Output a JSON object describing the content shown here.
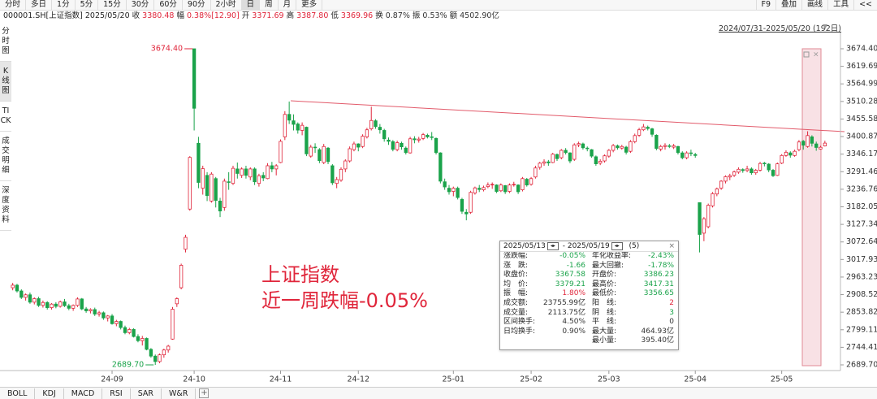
{
  "toolbar": {
    "tabs": [
      "分时",
      "多日",
      "1分",
      "5分",
      "15分",
      "30分",
      "60分",
      "90分",
      "2小时",
      "日",
      "周",
      "月",
      "更多"
    ],
    "active": "日",
    "tools": [
      "F9",
      "叠加",
      "画线",
      "工具",
      "<<"
    ]
  },
  "quote": {
    "symbol": "000001.SH[上证指数]",
    "date": "2025/05/20",
    "items": [
      {
        "label": "收",
        "value": "3380.48",
        "color": "#e0263b"
      },
      {
        "label": "幅",
        "value": "0.38%[12.90]",
        "color": "#e0263b"
      },
      {
        "label": "开",
        "value": "3371.69",
        "color": "#e0263b"
      },
      {
        "label": "高",
        "value": "3387.80",
        "color": "#e0263b"
      },
      {
        "label": "低",
        "value": "3369.96",
        "color": "#e0263b"
      },
      {
        "label": "换",
        "value": "0.87%",
        "color": "#333333"
      },
      {
        "label": "振",
        "value": "0.53%",
        "color": "#333333"
      },
      {
        "label": "额",
        "value": "4502.90亿",
        "color": "#333333"
      }
    ]
  },
  "sidebar": [
    "分时图",
    "K线图",
    "TICK",
    "成交明细",
    "深度资料"
  ],
  "sidebar_active": "K线图",
  "range": "2024/07/31-2025/05/20 (192日)",
  "headline": [
    "上证指数",
    "近一周跌幅-0.05%"
  ],
  "stats_box": {
    "start": "2025/05/13",
    "end": "2025/05/19",
    "count": "(5)",
    "left": [
      {
        "label": "涨跌幅:",
        "value": "-0.05%",
        "color": "#1aa34a"
      },
      {
        "label": "涨　跌:",
        "value": "-1.66",
        "color": "#1aa34a"
      },
      {
        "label": "收盘价:",
        "value": "3367.58",
        "color": "#1aa34a"
      },
      {
        "label": "均　价:",
        "value": "3379.21",
        "color": "#1aa34a"
      },
      {
        "label": "振　幅:",
        "value": "1.80%",
        "color": "#e0263b"
      },
      {
        "label": "成交额:",
        "value": "23755.99亿",
        "color": "#333333"
      },
      {
        "label": "成交量:",
        "value": "2113.75亿",
        "color": "#333333"
      },
      {
        "label": "区间换手:",
        "value": "4.50%",
        "color": "#333333"
      },
      {
        "label": "日均换手:",
        "value": "0.90%",
        "color": "#333333"
      }
    ],
    "right": [
      {
        "label": "年化收益率:",
        "value": "-2.43%",
        "color": "#1aa34a"
      },
      {
        "label": "最大回撤:",
        "value": "-1.78%",
        "color": "#1aa34a"
      },
      {
        "label": "开盘价:",
        "value": "3386.23",
        "color": "#1aa34a"
      },
      {
        "label": "最高价:",
        "value": "3417.31",
        "color": "#1aa34a"
      },
      {
        "label": "最低价:",
        "value": "3356.65",
        "color": "#1aa34a"
      },
      {
        "label": "阳　线:",
        "value": "2",
        "color": "#e0263b"
      },
      {
        "label": "阴　线:",
        "value": "3",
        "color": "#1aa34a"
      },
      {
        "label": "平　线:",
        "value": "0",
        "color": "#333333"
      },
      {
        "label": "最大量:",
        "value": "464.93亿",
        "color": "#333333"
      },
      {
        "label": "最小量:",
        "value": "395.40亿",
        "color": "#333333"
      }
    ]
  },
  "indicator_tabs": [
    "BOLL",
    "KDJ",
    "MACD",
    "RSI",
    "SAR",
    "W&R"
  ],
  "chart_data": {
    "type": "candlestick",
    "up_color": "#e0263b",
    "down_color": "#1aa34a",
    "xlim": [
      0,
      189
    ],
    "xticks": [
      {
        "value": 23,
        "label": "24-09"
      },
      {
        "value": 42,
        "label": "24-10"
      },
      {
        "value": 62,
        "label": "24-11"
      },
      {
        "value": 80,
        "label": "24-12"
      },
      {
        "value": 102,
        "label": "25-01"
      },
      {
        "value": 120,
        "label": "25-02"
      },
      {
        "value": 138,
        "label": "25-03"
      },
      {
        "value": 158,
        "label": "25-04"
      },
      {
        "value": 178,
        "label": "25-05"
      }
    ],
    "ylim": [
      2689.7,
      3674.4
    ],
    "yticks": [
      {
        "value": 3674.4,
        "label": "3674.40"
      },
      3619.69,
      3564.99,
      3510.28,
      3455.58,
      3400.87,
      3346.17,
      3291.46,
      3236.76,
      3182.05,
      3127.34,
      3072.64,
      3017.93,
      2963.23,
      2908.52,
      2853.82,
      2799.11,
      2744.41,
      {
        "value": 2689.7,
        "label": "2689.70"
      }
    ],
    "annotations": [
      {
        "value": 3674.4,
        "label": "3674.40"
      },
      {
        "value": 2689.7,
        "label": "2689.70"
      }
    ],
    "candles": [
      [
        2930,
        2945,
        2922,
        2938
      ],
      [
        2938,
        2942,
        2915,
        2920
      ],
      [
        2920,
        2925,
        2895,
        2900
      ],
      [
        2900,
        2912,
        2890,
        2908
      ],
      [
        2908,
        2915,
        2880,
        2885
      ],
      [
        2885,
        2900,
        2878,
        2896
      ],
      [
        2896,
        2902,
        2870,
        2875
      ],
      [
        2875,
        2890,
        2868,
        2884
      ],
      [
        2884,
        2888,
        2862,
        2868
      ],
      [
        2868,
        2882,
        2862,
        2879
      ],
      [
        2879,
        2885,
        2866,
        2872
      ],
      [
        2872,
        2890,
        2868,
        2886
      ],
      [
        2886,
        2895,
        2870,
        2874
      ],
      [
        2874,
        2880,
        2860,
        2866
      ],
      [
        2866,
        2878,
        2858,
        2875
      ],
      [
        2875,
        2900,
        2870,
        2895
      ],
      [
        2895,
        2898,
        2860,
        2864
      ],
      [
        2864,
        2870,
        2852,
        2858
      ],
      [
        2858,
        2866,
        2850,
        2862
      ],
      [
        2862,
        2868,
        2842,
        2848
      ],
      [
        2848,
        2858,
        2840,
        2852
      ],
      [
        2852,
        2856,
        2830,
        2836
      ],
      [
        2836,
        2845,
        2825,
        2842
      ],
      [
        2842,
        2848,
        2815,
        2818
      ],
      [
        2818,
        2830,
        2810,
        2825
      ],
      [
        2825,
        2828,
        2800,
        2806
      ],
      [
        2806,
        2812,
        2785,
        2790
      ],
      [
        2790,
        2805,
        2785,
        2800
      ],
      [
        2800,
        2804,
        2775,
        2778
      ],
      [
        2778,
        2785,
        2760,
        2765
      ],
      [
        2765,
        2780,
        2750,
        2772
      ],
      [
        2772,
        2775,
        2735,
        2738
      ],
      [
        2738,
        2742,
        2712,
        2717
      ],
      [
        2717,
        2722,
        2689.7,
        2700
      ],
      [
        2700,
        2725,
        2695,
        2721
      ],
      [
        2721,
        2740,
        2712,
        2736
      ],
      [
        2736,
        2752,
        2728,
        2748
      ],
      [
        2770,
        2870,
        2768,
        2863
      ],
      [
        2880,
        2900,
        2870,
        2896
      ],
      [
        2930,
        3005,
        2925,
        3000
      ],
      [
        3050,
        3095,
        3040,
        3087
      ],
      [
        3175,
        3340,
        3170,
        3336
      ],
      [
        3674.4,
        3674.4,
        3420,
        3489
      ],
      [
        3380,
        3400,
        3240,
        3258
      ],
      [
        3240,
        3310,
        3220,
        3301
      ],
      [
        3280,
        3290,
        3200,
        3217
      ],
      [
        3200,
        3290,
        3195,
        3284
      ],
      [
        3270,
        3275,
        3180,
        3202
      ],
      [
        3200,
        3210,
        3150,
        3169
      ],
      [
        3180,
        3270,
        3170,
        3262
      ],
      [
        3260,
        3290,
        3235,
        3258
      ],
      [
        3255,
        3310,
        3250,
        3302
      ],
      [
        3300,
        3320,
        3270,
        3286
      ],
      [
        3280,
        3305,
        3272,
        3300
      ],
      [
        3300,
        3310,
        3270,
        3280
      ],
      [
        3275,
        3305,
        3265,
        3300
      ],
      [
        3300,
        3305,
        3250,
        3260
      ],
      [
        3255,
        3285,
        3245,
        3279
      ],
      [
        3280,
        3290,
        3262,
        3272
      ],
      [
        3270,
        3318,
        3268,
        3310
      ],
      [
        3310,
        3322,
        3290,
        3300
      ],
      [
        3300,
        3315,
        3280,
        3310
      ],
      [
        3320,
        3392,
        3318,
        3386
      ],
      [
        3400,
        3480,
        3390,
        3470
      ],
      [
        3470,
        3510,
        3440,
        3452
      ],
      [
        3450,
        3470,
        3420,
        3439
      ],
      [
        3440,
        3445,
        3410,
        3421
      ],
      [
        3420,
        3445,
        3405,
        3436
      ],
      [
        3430,
        3432,
        3340,
        3347
      ],
      [
        3340,
        3375,
        3335,
        3368
      ],
      [
        3368,
        3380,
        3350,
        3367
      ],
      [
        3360,
        3365,
        3318,
        3326
      ],
      [
        3320,
        3378,
        3315,
        3370
      ],
      [
        3365,
        3368,
        3315,
        3323
      ],
      [
        3310,
        3315,
        3250,
        3257
      ],
      [
        3255,
        3275,
        3240,
        3267
      ],
      [
        3265,
        3305,
        3260,
        3299
      ],
      [
        3300,
        3330,
        3290,
        3325
      ],
      [
        3325,
        3370,
        3320,
        3363
      ],
      [
        3360,
        3385,
        3355,
        3378
      ],
      [
        3378,
        3380,
        3355,
        3368
      ],
      [
        3370,
        3408,
        3365,
        3402
      ],
      [
        3400,
        3428,
        3395,
        3422
      ],
      [
        3425,
        3494,
        3420,
        3451
      ],
      [
        3450,
        3455,
        3425,
        3432
      ],
      [
        3430,
        3440,
        3410,
        3422
      ],
      [
        3420,
        3425,
        3385,
        3394
      ],
      [
        3390,
        3398,
        3375,
        3386
      ],
      [
        3385,
        3390,
        3355,
        3361
      ],
      [
        3360,
        3388,
        3355,
        3382
      ],
      [
        3380,
        3385,
        3360,
        3369
      ],
      [
        3365,
        3370,
        3345,
        3351
      ],
      [
        3350,
        3400,
        3348,
        3394
      ],
      [
        3394,
        3402,
        3380,
        3391
      ],
      [
        3390,
        3400,
        3382,
        3393
      ],
      [
        3395,
        3412,
        3390,
        3407
      ],
      [
        3405,
        3410,
        3395,
        3400
      ],
      [
        3400,
        3415,
        3390,
        3398
      ],
      [
        3395,
        3398,
        3345,
        3351
      ],
      [
        3350,
        3352,
        3255,
        3262
      ],
      [
        3260,
        3270,
        3235,
        3244
      ],
      [
        3240,
        3250,
        3220,
        3229
      ],
      [
        3230,
        3245,
        3215,
        3240
      ],
      [
        3240,
        3245,
        3205,
        3211
      ],
      [
        3205,
        3210,
        3160,
        3168
      ],
      [
        3165,
        3175,
        3140,
        3160
      ],
      [
        3165,
        3232,
        3160,
        3227
      ],
      [
        3225,
        3245,
        3220,
        3241
      ],
      [
        3240,
        3250,
        3228,
        3236
      ],
      [
        3235,
        3248,
        3230,
        3242
      ],
      [
        3245,
        3258,
        3240,
        3250
      ],
      [
        3250,
        3258,
        3238,
        3252
      ],
      [
        3250,
        3252,
        3225,
        3230
      ],
      [
        3232,
        3255,
        3228,
        3250
      ],
      [
        3248,
        3250,
        3222,
        3229
      ],
      [
        3230,
        3255,
        3225,
        3250
      ],
      [
        3250,
        3260,
        3245,
        3252
      ],
      [
        3250,
        3252,
        3222,
        3229
      ],
      [
        3235,
        3275,
        3230,
        3270
      ],
      [
        3268,
        3272,
        3245,
        3250
      ],
      [
        3252,
        3275,
        3248,
        3270
      ],
      [
        3275,
        3310,
        3270,
        3303
      ],
      [
        3305,
        3322,
        3298,
        3318
      ],
      [
        3318,
        3330,
        3310,
        3322
      ],
      [
        3322,
        3328,
        3310,
        3319
      ],
      [
        3320,
        3350,
        3318,
        3346
      ],
      [
        3345,
        3348,
        3325,
        3332
      ],
      [
        3335,
        3362,
        3330,
        3358
      ],
      [
        3358,
        3365,
        3345,
        3351
      ],
      [
        3350,
        3352,
        3318,
        3325
      ],
      [
        3330,
        3380,
        3325,
        3375
      ],
      [
        3375,
        3385,
        3368,
        3379
      ],
      [
        3378,
        3382,
        3360,
        3366
      ],
      [
        3365,
        3370,
        3355,
        3363
      ],
      [
        3360,
        3362,
        3335,
        3340
      ],
      [
        3338,
        3342,
        3310,
        3316
      ],
      [
        3318,
        3330,
        3312,
        3324
      ],
      [
        3325,
        3345,
        3320,
        3341
      ],
      [
        3340,
        3362,
        3335,
        3358
      ],
      [
        3358,
        3378,
        3352,
        3373
      ],
      [
        3372,
        3376,
        3360,
        3366
      ],
      [
        3365,
        3375,
        3360,
        3370
      ],
      [
        3368,
        3372,
        3345,
        3352
      ],
      [
        3355,
        3390,
        3350,
        3385
      ],
      [
        3385,
        3410,
        3380,
        3404
      ],
      [
        3405,
        3428,
        3400,
        3422
      ],
      [
        3422,
        3440,
        3418,
        3431
      ],
      [
        3430,
        3435,
        3420,
        3426
      ],
      [
        3425,
        3428,
        3400,
        3408
      ],
      [
        3405,
        3408,
        3358,
        3364
      ],
      [
        3362,
        3375,
        3355,
        3370
      ],
      [
        3370,
        3380,
        3360,
        3373
      ],
      [
        3372,
        3378,
        3365,
        3370
      ],
      [
        3368,
        3378,
        3362,
        3372
      ],
      [
        3370,
        3372,
        3345,
        3351
      ],
      [
        3350,
        3355,
        3330,
        3335
      ],
      [
        3335,
        3355,
        3330,
        3350
      ],
      [
        3350,
        3360,
        3340,
        3348
      ],
      [
        3345,
        3350,
        3335,
        3342
      ],
      [
        3195,
        3195,
        3040,
        3096
      ],
      [
        3100,
        3150,
        3075,
        3145
      ],
      [
        3120,
        3192,
        3115,
        3187
      ],
      [
        3185,
        3228,
        3180,
        3223
      ],
      [
        3222,
        3242,
        3215,
        3238
      ],
      [
        3240,
        3265,
        3235,
        3262
      ],
      [
        3262,
        3280,
        3255,
        3276
      ],
      [
        3275,
        3285,
        3265,
        3279
      ],
      [
        3280,
        3295,
        3275,
        3291
      ],
      [
        3290,
        3305,
        3285,
        3299
      ],
      [
        3298,
        3302,
        3288,
        3295
      ],
      [
        3295,
        3310,
        3290,
        3300
      ],
      [
        3300,
        3305,
        3282,
        3288
      ],
      [
        3288,
        3300,
        3282,
        3296
      ],
      [
        3296,
        3322,
        3292,
        3317
      ],
      [
        3318,
        3322,
        3308,
        3316
      ],
      [
        3315,
        3318,
        3290,
        3297
      ],
      [
        3296,
        3300,
        3275,
        3279
      ],
      [
        3280,
        3320,
        3278,
        3316
      ],
      [
        3318,
        3346,
        3315,
        3342
      ],
      [
        3342,
        3358,
        3338,
        3352
      ],
      [
        3350,
        3355,
        3335,
        3343
      ],
      [
        3342,
        3360,
        3338,
        3355
      ],
      [
        3360,
        3390,
        3355,
        3384
      ],
      [
        3386.23,
        3390,
        3360,
        3374
      ],
      [
        3370,
        3417.31,
        3366,
        3404
      ],
      [
        3400,
        3405,
        3370,
        3380
      ],
      [
        3378,
        3385,
        3356.65,
        3367
      ],
      [
        3362,
        3372,
        3360,
        3367.58
      ],
      [
        3371.69,
        3387.8,
        3369.96,
        3380.48
      ]
    ]
  }
}
